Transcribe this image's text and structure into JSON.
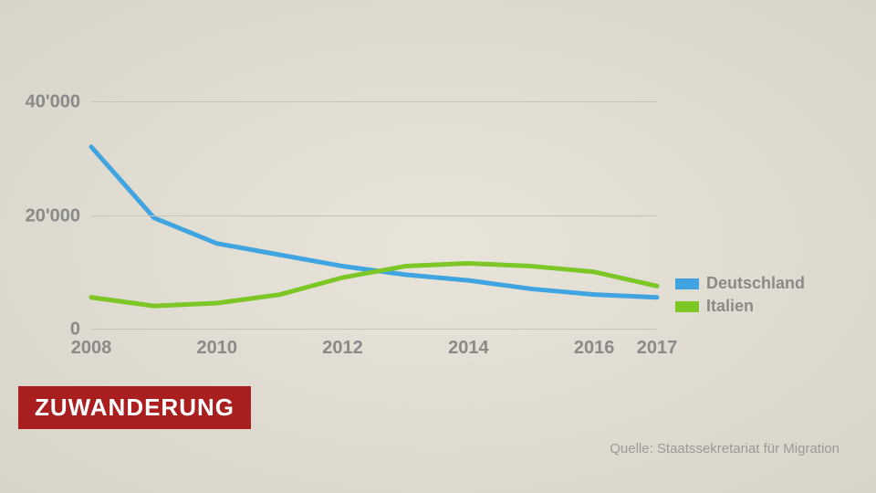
{
  "chart": {
    "type": "line",
    "years": [
      2008,
      2009,
      2010,
      2011,
      2012,
      2013,
      2014,
      2015,
      2016,
      2017
    ],
    "x_tick_labels": [
      "2008",
      "2010",
      "2012",
      "2014",
      "2016",
      "2017"
    ],
    "x_tick_values": [
      2008,
      2010,
      2012,
      2014,
      2016,
      2017
    ],
    "y_tick_labels": [
      "0",
      "20'000",
      "40'000"
    ],
    "y_tick_values": [
      0,
      20000,
      40000
    ],
    "ylim": [
      0,
      45000
    ],
    "xlim": [
      2008,
      2017
    ],
    "series": [
      {
        "name": "Deutschland",
        "color": "#3fa4e0",
        "width": 5,
        "values": [
          32000,
          19500,
          15000,
          13000,
          11000,
          9500,
          8500,
          7000,
          6000,
          5500
        ]
      },
      {
        "name": "Italien",
        "color": "#7cc626",
        "width": 5,
        "values": [
          5500,
          4000,
          4500,
          6000,
          9000,
          11000,
          11500,
          11000,
          10000,
          7500
        ]
      }
    ],
    "grid_color": "#c8c4ba",
    "axis_label_color": "#8a8a88",
    "axis_label_fontsize": 20
  },
  "legend": {
    "items": [
      {
        "label": "Deutschland",
        "color": "#3fa4e0"
      },
      {
        "label": "Italien",
        "color": "#7cc626"
      }
    ]
  },
  "title": "ZUWANDERUNG",
  "title_bg": "#a91e1e",
  "title_color": "#ffffff",
  "source": "Quelle: Staatssekretariat für Migration",
  "background": "#e4e0d6"
}
